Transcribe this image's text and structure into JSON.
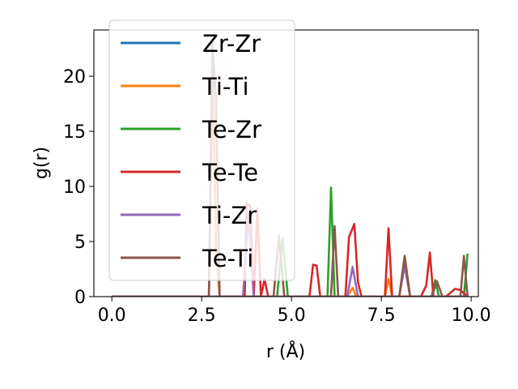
{
  "chart_data": {
    "type": "line",
    "xlabel": "r (Å)",
    "ylabel": "g(r)",
    "xlim": [
      -0.5,
      10.2
    ],
    "ylim": [
      0,
      24.2
    ],
    "xticks": [
      "0.0",
      "2.5",
      "5.0",
      "7.5",
      "10.0"
    ],
    "xtick_values": [
      0,
      2.5,
      5,
      7.5,
      10
    ],
    "yticks": [
      "0",
      "5",
      "10",
      "15",
      "20"
    ],
    "ytick_values": [
      0,
      5,
      10,
      15,
      20
    ],
    "grid": false,
    "legend_position": "top-left",
    "series": [
      {
        "name": "Zr-Zr",
        "color": "#1f77b4",
        "x": [
          0,
          2.7,
          2.8,
          2.9,
          3.0,
          9.9
        ],
        "y": [
          0,
          0,
          22,
          5,
          0,
          0
        ]
      },
      {
        "name": "Ti-Ti",
        "color": "#ff7f0e",
        "x": [
          0,
          2.7,
          2.8,
          2.9,
          3.0,
          6.55,
          6.7,
          6.8,
          7.6,
          7.7,
          7.8,
          9.9
        ],
        "y": [
          0,
          0,
          20,
          4,
          0,
          0,
          0.8,
          0,
          0,
          1.6,
          0,
          0
        ]
      },
      {
        "name": "Te-Zr",
        "color": "#2ca02c",
        "x": [
          0,
          4.6,
          4.75,
          4.9,
          6.0,
          6.1,
          6.2,
          8.0,
          8.15,
          8.3,
          8.9,
          9.0,
          9.1,
          9.8,
          9.9
        ],
        "y": [
          0,
          0,
          5.3,
          0,
          0,
          9.9,
          0,
          0,
          3.6,
          0,
          0,
          1.5,
          0,
          0,
          3.9
        ]
      },
      {
        "name": "Te-Te",
        "color": "#d62728",
        "x": [
          0,
          3.7,
          3.75,
          3.85,
          3.95,
          4.05,
          4.15,
          4.25,
          4.35,
          5.5,
          5.6,
          5.7,
          5.8,
          6.5,
          6.6,
          6.75,
          6.85,
          6.95,
          7.6,
          7.7,
          7.8,
          8.6,
          8.75,
          8.85,
          8.95,
          9.3,
          9.55,
          9.7,
          9.9
        ],
        "y": [
          0,
          0,
          8.5,
          8.2,
          0,
          8.0,
          0,
          1.6,
          0,
          0,
          2.9,
          2.8,
          0,
          0,
          5.4,
          6.6,
          1.3,
          0,
          0,
          6.2,
          0,
          0,
          1.0,
          4.0,
          0,
          0,
          0.7,
          0.6,
          0
        ]
      },
      {
        "name": "Ti-Zr",
        "color": "#9467bd",
        "x": [
          0,
          3.65,
          3.8,
          3.95,
          6.55,
          6.7,
          6.85,
          8.0,
          8.15,
          8.3,
          9.9
        ],
        "y": [
          0,
          0,
          7.5,
          0,
          0,
          2.7,
          0,
          0,
          2.8,
          0,
          0
        ]
      },
      {
        "name": "Te-Ti",
        "color": "#8c564b",
        "x": [
          0,
          2.7,
          2.8,
          2.9,
          3.0,
          4.5,
          4.65,
          4.8,
          6.1,
          6.2,
          6.3,
          8.0,
          8.15,
          8.3,
          8.9,
          9.05,
          9.2,
          9.7,
          9.8,
          9.9
        ],
        "y": [
          0,
          0,
          23,
          18,
          0,
          0,
          5.5,
          0,
          0,
          6.4,
          0,
          0,
          3.7,
          0,
          0,
          1.4,
          0,
          0,
          3.7,
          0
        ]
      }
    ]
  }
}
